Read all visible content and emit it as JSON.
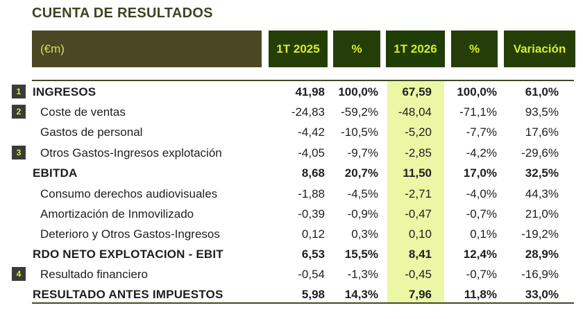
{
  "title": "CUENTA DE RESULTADOS",
  "header": {
    "label": "(€m)",
    "columns": [
      "1T 2025",
      "%",
      "1T 2026",
      "%",
      "Variación"
    ]
  },
  "rows": [
    {
      "badge": "1",
      "label": "INGRESOS",
      "bold": true,
      "values": [
        "41,98",
        "100,0%",
        "67,59",
        "100,0%",
        "61,0%"
      ]
    },
    {
      "badge": "2",
      "label": "Coste de ventas",
      "bold": false,
      "values": [
        "-24,83",
        "-59,2%",
        "-48,04",
        "-71,1%",
        "93,5%"
      ]
    },
    {
      "badge": "",
      "label": "Gastos de personal",
      "bold": false,
      "values": [
        "-4,42",
        "-10,5%",
        "-5,20",
        "-7,7%",
        "17,6%"
      ]
    },
    {
      "badge": "3",
      "label": "Otros Gastos-Ingresos explotación",
      "bold": false,
      "values": [
        "-4,05",
        "-9,7%",
        "-2,85",
        "-4,2%",
        "-29,6%"
      ]
    },
    {
      "badge": "",
      "label": "EBITDA",
      "bold": true,
      "values": [
        "8,68",
        "20,7%",
        "11,50",
        "17,0%",
        "32,5%"
      ]
    },
    {
      "badge": "",
      "label": "Consumo derechos audiovisuales",
      "bold": false,
      "values": [
        "-1,88",
        "-4,5%",
        "-2,71",
        "-4,0%",
        "44,3%"
      ]
    },
    {
      "badge": "",
      "label": "Amortización de Inmovilizado",
      "bold": false,
      "values": [
        "-0,39",
        "-0,9%",
        "-0,47",
        "-0,7%",
        "21,0%"
      ]
    },
    {
      "badge": "",
      "label": "Deterioro y Otros Gastos-Ingresos",
      "bold": false,
      "values": [
        "0,12",
        "0,3%",
        "0,10",
        "0,1%",
        "-19,2%"
      ]
    },
    {
      "badge": "",
      "label": "RDO NETO EXPLOTACION - EBIT",
      "bold": true,
      "values": [
        "6,53",
        "15,5%",
        "8,41",
        "12,4%",
        "28,9%"
      ]
    },
    {
      "badge": "4",
      "label": "Resultado financiero",
      "bold": false,
      "values": [
        "-0,54",
        "-1,3%",
        "-0,45",
        "-0,7%",
        "-16,9%"
      ]
    },
    {
      "badge": "",
      "label": "RESULTADO ANTES IMPUESTOS",
      "bold": true,
      "values": [
        "5,98",
        "14,3%",
        "7,96",
        "11,8%",
        "33,0%"
      ]
    }
  ],
  "colors": {
    "header_dark": "#253e07",
    "header_label": "#4a4724",
    "header_text": "#d7ee2f",
    "highlight_column": "#ecf7a6",
    "badge_bg": "#3b3b3b"
  }
}
